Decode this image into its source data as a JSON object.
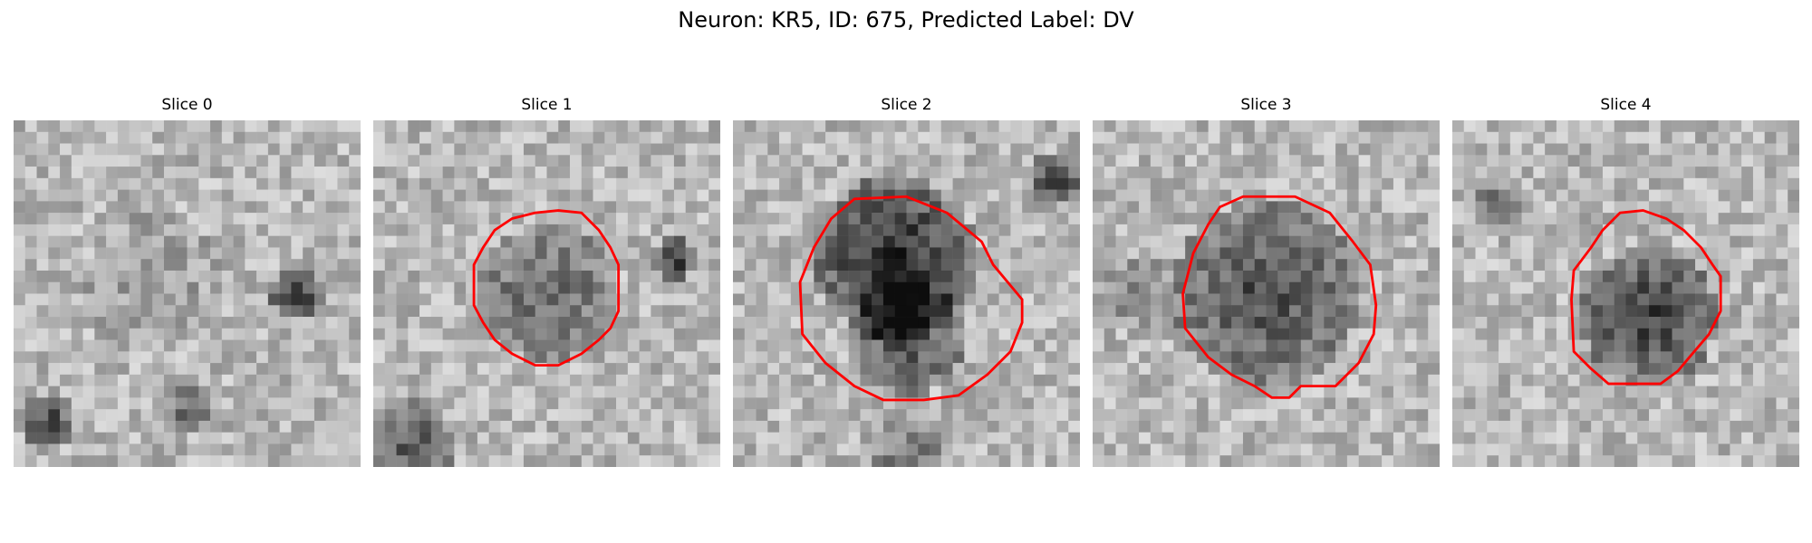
{
  "figure": {
    "title": "Neuron: KR5, ID: 675, Predicted Label: DV",
    "outline_color": "#ff0000",
    "colormap": "grayscale",
    "panels": [
      {
        "title": "Slice 0",
        "has_outline": false
      },
      {
        "title": "Slice 1",
        "has_outline": true
      },
      {
        "title": "Slice 2",
        "has_outline": true
      },
      {
        "title": "Slice 3",
        "has_outline": true
      },
      {
        "title": "Slice 4",
        "has_outline": true
      }
    ]
  }
}
